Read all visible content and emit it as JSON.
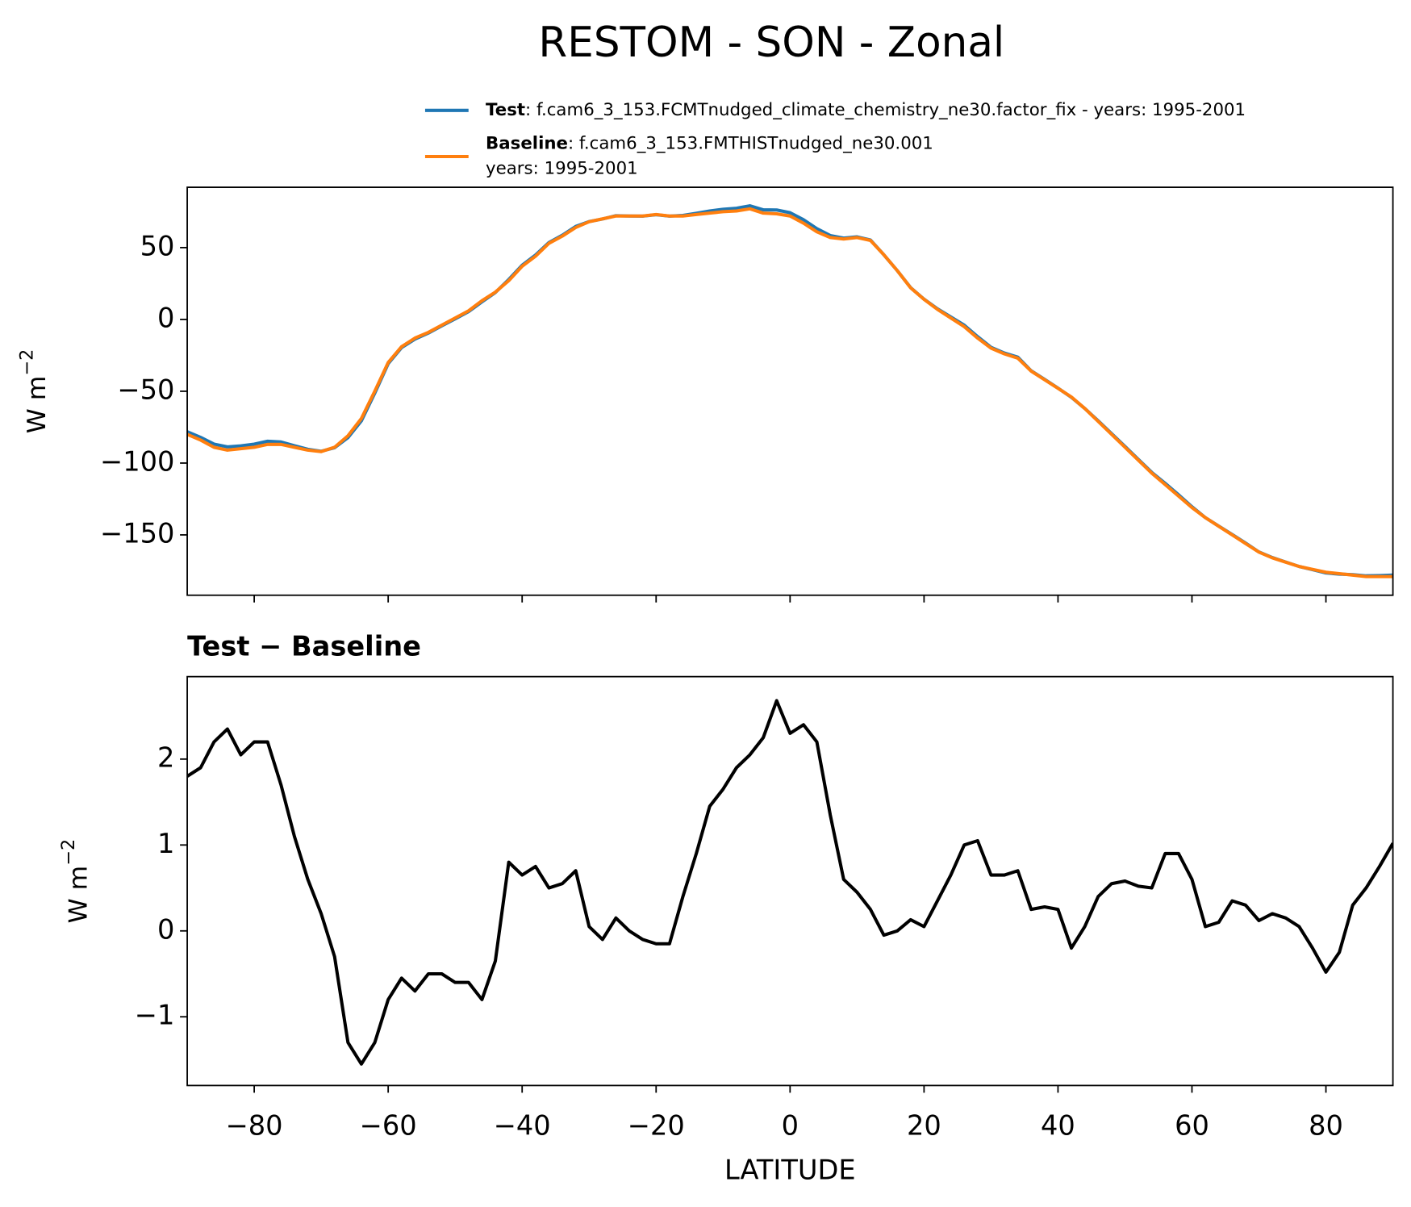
{
  "title": "RESTOM - SON - Zonal",
  "chart_data": [
    {
      "type": "line",
      "ylabel": {
        "text": "W m",
        "superscript": "−2"
      },
      "xlim": [
        -90,
        90
      ],
      "ylim": [
        -192,
        92
      ],
      "xticks": [
        -80,
        -60,
        -40,
        -20,
        0,
        20,
        40,
        60,
        80
      ],
      "yticks": [
        {
          "value": -150,
          "label": "−150"
        },
        {
          "value": -100,
          "label": "−100"
        },
        {
          "value": -50,
          "label": "−50"
        },
        0,
        50
      ],
      "x": [
        -90,
        -88,
        -86,
        -84,
        -82,
        -80,
        -78,
        -76,
        -74,
        -72,
        -70,
        -68,
        -66,
        -64,
        -62,
        -60,
        -58,
        -56,
        -54,
        -52,
        -50,
        -48,
        -46,
        -44,
        -42,
        -40,
        -38,
        -36,
        -34,
        -32,
        -30,
        -28,
        -26,
        -24,
        -22,
        -20,
        -18,
        -16,
        -14,
        -12,
        -10,
        -8,
        -6,
        -4,
        -2,
        0,
        2,
        4,
        6,
        8,
        10,
        12,
        14,
        16,
        18,
        20,
        22,
        24,
        26,
        28,
        30,
        32,
        34,
        36,
        38,
        40,
        42,
        44,
        46,
        48,
        50,
        52,
        54,
        56,
        58,
        60,
        62,
        64,
        66,
        68,
        70,
        72,
        74,
        76,
        78,
        80,
        82,
        84,
        86,
        88,
        90
      ],
      "series": [
        {
          "name": "Test",
          "description": [
            ": f.cam6_3_153.FCMTnudged_climate_chemistry_ne30.factor_fix - years: 1995-2001"
          ],
          "color": "#1f77b4",
          "values": [
            -78.2,
            -82.1,
            -86.8,
            -88.7,
            -88.0,
            -86.8,
            -84.8,
            -85.3,
            -87.9,
            -90.4,
            -91.8,
            -89.3,
            -82.3,
            -70.6,
            -51.3,
            -30.8,
            -19.6,
            -13.7,
            -9.5,
            -4.5,
            0.4,
            5.4,
            12.2,
            18.7,
            27.8,
            37.7,
            44.8,
            53.5,
            58.6,
            64.7,
            68.1,
            69.9,
            72.2,
            72.0,
            71.9,
            72.9,
            71.9,
            72.4,
            73.9,
            75.5,
            76.7,
            77.4,
            79.1,
            76.3,
            76.2,
            74.3,
            69.4,
            63.2,
            58.4,
            56.6,
            57.5,
            55.3,
            45.0,
            34.0,
            22.1,
            14.1,
            7.4,
            1.7,
            -4.0,
            -12.0,
            -19.4,
            -23.4,
            -26.3,
            -35.8,
            -41.7,
            -47.8,
            -54.2,
            -62.0,
            -70.6,
            -79.5,
            -88.4,
            -97.5,
            -106.5,
            -114.1,
            -122.1,
            -130.4,
            -138.0,
            -143.9,
            -149.7,
            -155.7,
            -161.9,
            -165.8,
            -168.9,
            -172.0,
            -174.2,
            -176.5,
            -177.3,
            -177.7,
            -178.5,
            -178.3,
            -178.0
          ]
        },
        {
          "name": "Baseline",
          "description": [
            ": f.cam6_3_153.FMTHISTnudged_ne30.001",
            "years: 1995-2001"
          ],
          "color": "#ff7f0e",
          "values": [
            -80,
            -84,
            -89,
            -91,
            -90,
            -89,
            -87,
            -87,
            -89,
            -91,
            -92,
            -89,
            -81,
            -69,
            -50,
            -30,
            -19,
            -13,
            -9,
            -4,
            1,
            6,
            13,
            19,
            27,
            37,
            44,
            53,
            58,
            64,
            68,
            70,
            72,
            72,
            72,
            73,
            72,
            72,
            73,
            74,
            75,
            75.5,
            77,
            74,
            73.5,
            72,
            67,
            61,
            57,
            56,
            57,
            55,
            45,
            34,
            22,
            14,
            7,
            1,
            -5,
            -13,
            -20,
            -24,
            -27,
            -36,
            -42,
            -48,
            -54,
            -62,
            -71,
            -80,
            -89,
            -98,
            -107,
            -115,
            -123,
            -131,
            -138,
            -144,
            -150,
            -156,
            -162,
            -166,
            -169,
            -172,
            -174,
            -176,
            -177,
            -178,
            -179,
            -179,
            -179
          ]
        }
      ]
    },
    {
      "type": "line",
      "subtitle": "Test − Baseline",
      "xlabel": "LATITUDE",
      "ylabel": {
        "text": "W m",
        "superscript": "−2"
      },
      "xlim": [
        -90,
        90
      ],
      "ylim": [
        -1.8,
        2.96
      ],
      "xticks": [
        {
          "value": -80,
          "label": "−80"
        },
        {
          "value": -60,
          "label": "−60"
        },
        {
          "value": -40,
          "label": "−40"
        },
        {
          "value": -20,
          "label": "−20"
        },
        0,
        20,
        40,
        60,
        80
      ],
      "yticks": [
        {
          "value": -1,
          "label": "−1"
        },
        0,
        1,
        2
      ],
      "x": [
        -90,
        -88,
        -86,
        -84,
        -82,
        -80,
        -78,
        -76,
        -74,
        -72,
        -70,
        -68,
        -66,
        -64,
        -62,
        -60,
        -58,
        -56,
        -54,
        -52,
        -50,
        -48,
        -46,
        -44,
        -42,
        -40,
        -38,
        -36,
        -34,
        -32,
        -30,
        -28,
        -26,
        -24,
        -22,
        -20,
        -18,
        -16,
        -14,
        -12,
        -10,
        -8,
        -6,
        -4,
        -2,
        0,
        2,
        4,
        6,
        8,
        10,
        12,
        14,
        16,
        18,
        20,
        22,
        24,
        26,
        28,
        30,
        32,
        34,
        36,
        38,
        40,
        42,
        44,
        46,
        48,
        50,
        52,
        54,
        56,
        58,
        60,
        62,
        64,
        66,
        68,
        70,
        72,
        74,
        76,
        78,
        80,
        82,
        84,
        86,
        88,
        90
      ],
      "series": [
        {
          "color": "#000000",
          "values": [
            1.8,
            1.9,
            2.2,
            2.35,
            2.05,
            2.2,
            2.2,
            1.7,
            1.1,
            0.6,
            0.2,
            -0.3,
            -1.3,
            -1.55,
            -1.3,
            -0.8,
            -0.55,
            -0.7,
            -0.5,
            -0.5,
            -0.6,
            -0.6,
            -0.8,
            -0.35,
            0.8,
            0.65,
            0.75,
            0.5,
            0.55,
            0.7,
            0.05,
            -0.1,
            0.15,
            0.0,
            -0.1,
            -0.15,
            -0.15,
            0.4,
            0.9,
            1.45,
            1.65,
            1.9,
            2.05,
            2.25,
            2.68,
            2.3,
            2.4,
            2.2,
            1.35,
            0.6,
            0.45,
            0.25,
            -0.05,
            0.0,
            0.13,
            0.05,
            0.35,
            0.65,
            1.0,
            1.05,
            0.65,
            0.65,
            0.7,
            0.25,
            0.28,
            0.25,
            -0.2,
            0.05,
            0.4,
            0.55,
            0.58,
            0.52,
            0.5,
            0.9,
            0.9,
            0.6,
            0.05,
            0.1,
            0.35,
            0.3,
            0.12,
            0.2,
            0.15,
            0.05,
            -0.2,
            -0.48,
            -0.25,
            0.3,
            0.5,
            0.75,
            1.02
          ]
        }
      ]
    }
  ]
}
